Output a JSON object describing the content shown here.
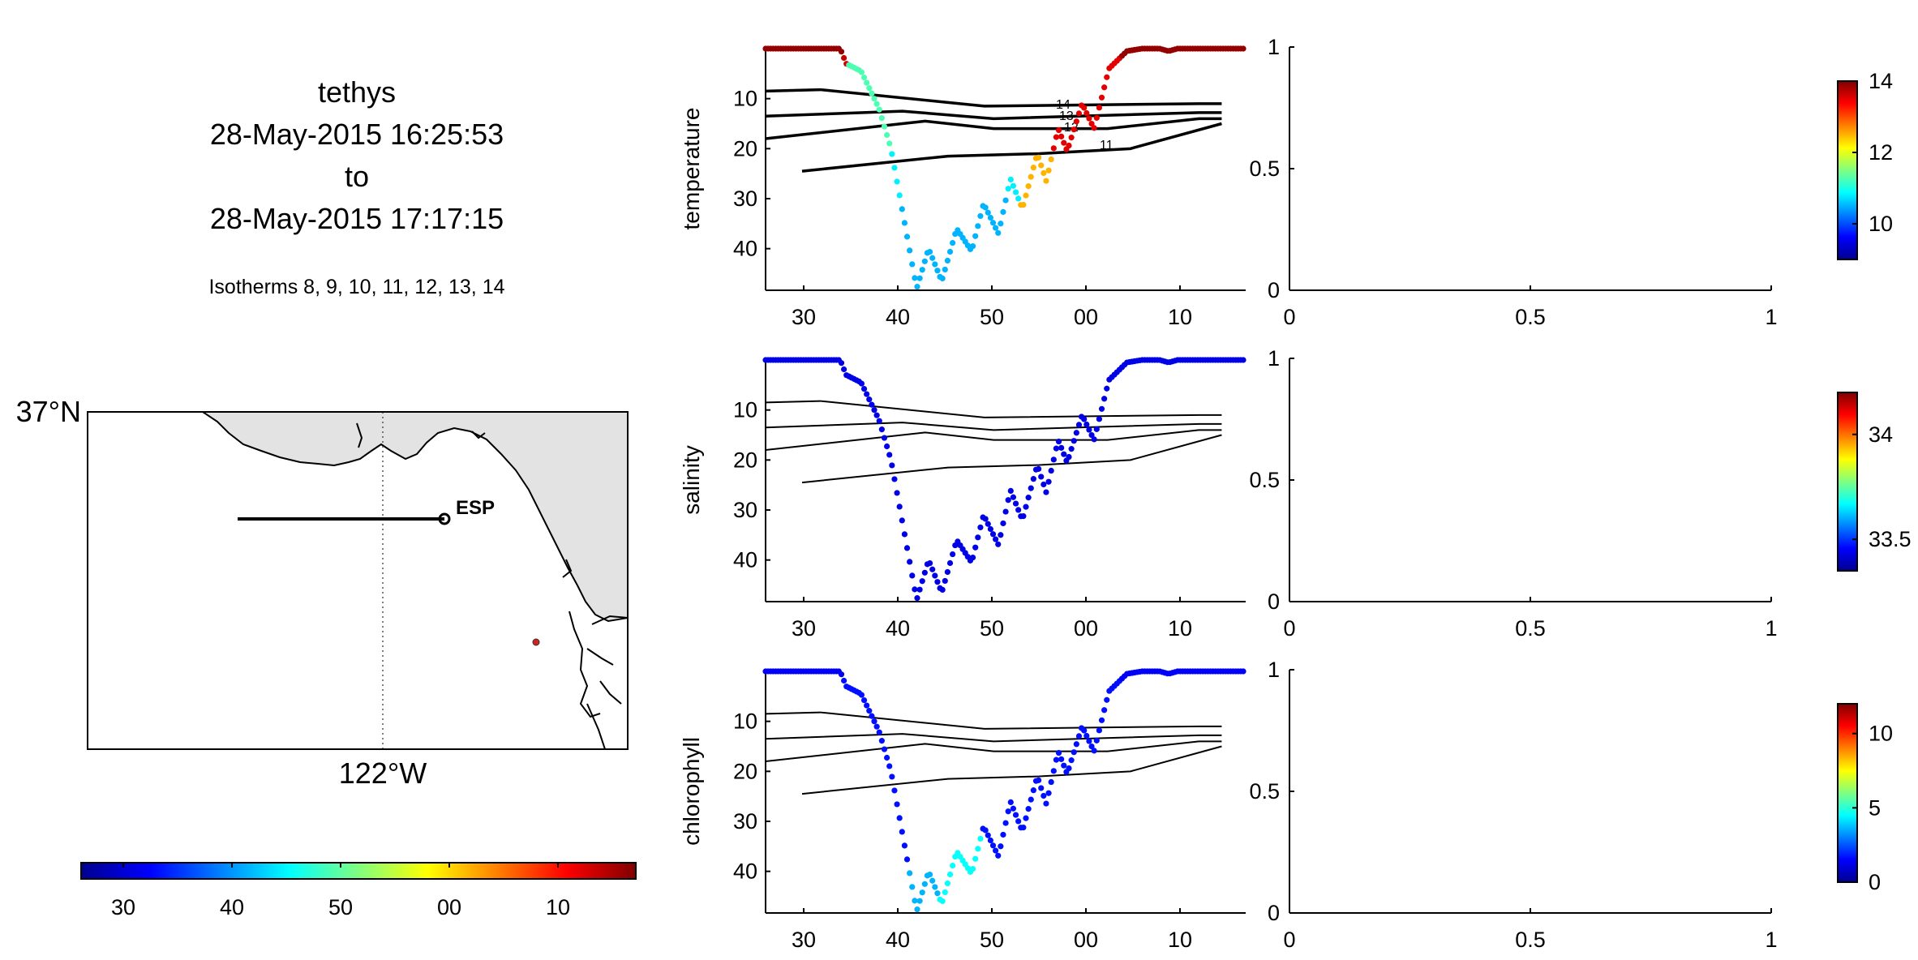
{
  "header": {
    "vehicle": "tethys",
    "start_time": "28-May-2015 16:25:53",
    "to_word": "to",
    "end_time": "28-May-2015 17:17:15",
    "isotherm_note": "Isotherms 8, 9, 10, 11, 12, 13, 14"
  },
  "map": {
    "lat_label": "37°N",
    "lon_label": "122°W",
    "station_label": "ESP",
    "land_color": "#e3e3e3",
    "track_color": "#000000",
    "marker_color": "#cc2222"
  },
  "time_colorbar": {
    "tick_labels": [
      "30",
      "40",
      "50",
      "00",
      "10"
    ],
    "colormap": "jet"
  },
  "chart_data": [
    {
      "type": "scatter",
      "ylabel": "temperature",
      "x_tick_labels": [
        "30",
        "40",
        "50",
        "00",
        "10"
      ],
      "y_ticks": [
        10,
        20,
        30,
        40
      ],
      "ylim": [
        0,
        48
      ],
      "y_reversed": true,
      "colorbar": {
        "ticks": [
          10,
          12,
          14
        ],
        "range": [
          9,
          14
        ]
      },
      "isotherm_labels": [
        "14",
        "13",
        "12",
        "11"
      ],
      "side_axes": {
        "x_ticks": [
          "0",
          "0.5",
          "1"
        ],
        "y_ticks": [
          "0",
          "0.5",
          "1"
        ]
      }
    },
    {
      "type": "scatter",
      "ylabel": "salinity",
      "x_tick_labels": [
        "30",
        "40",
        "50",
        "00",
        "10"
      ],
      "y_ticks": [
        10,
        20,
        30,
        40
      ],
      "ylim": [
        0,
        48
      ],
      "y_reversed": true,
      "colorbar": {
        "ticks": [
          33.5,
          34
        ],
        "range": [
          33.35,
          34.2
        ]
      },
      "side_axes": {
        "x_ticks": [
          "0",
          "0.5",
          "1"
        ],
        "y_ticks": [
          "0",
          "0.5",
          "1"
        ]
      }
    },
    {
      "type": "scatter",
      "ylabel": "chlorophyll",
      "x_tick_labels": [
        "30",
        "40",
        "50",
        "00",
        "10"
      ],
      "y_ticks": [
        10,
        20,
        30,
        40
      ],
      "ylim": [
        0,
        48
      ],
      "y_reversed": true,
      "colorbar": {
        "ticks": [
          0,
          5,
          10
        ],
        "range": [
          0,
          12
        ]
      },
      "side_axes": {
        "x_ticks": [
          "0",
          "0.5",
          "1"
        ],
        "y_ticks": [
          "0",
          "0.5",
          "1"
        ]
      }
    }
  ]
}
